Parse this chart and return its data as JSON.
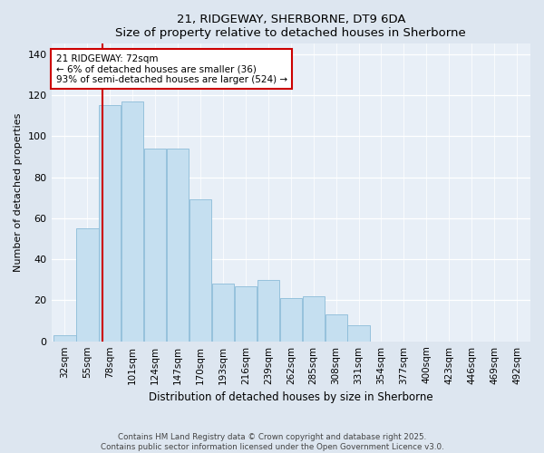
{
  "title": "21, RIDGEWAY, SHERBORNE, DT9 6DA",
  "subtitle": "Size of property relative to detached houses in Sherborne",
  "xlabel": "Distribution of detached houses by size in Sherborne",
  "ylabel": "Number of detached properties",
  "categories": [
    "32sqm",
    "55sqm",
    "78sqm",
    "101sqm",
    "124sqm",
    "147sqm",
    "170sqm",
    "193sqm",
    "216sqm",
    "239sqm",
    "262sqm",
    "285sqm",
    "308sqm",
    "331sqm",
    "354sqm",
    "377sqm",
    "400sqm",
    "423sqm",
    "446sqm",
    "469sqm",
    "492sqm"
  ],
  "values": [
    3,
    55,
    115,
    117,
    94,
    94,
    69,
    28,
    27,
    30,
    21,
    22,
    13,
    8,
    0,
    0,
    0,
    0,
    0,
    0,
    0
  ],
  "bar_color": "#c5dff0",
  "bar_edge_color": "#8bbbd8",
  "vline_x_data": 1.65,
  "vline_color": "#cc0000",
  "annotation_text": "21 RIDGEWAY: 72sqm\n← 6% of detached houses are smaller (36)\n93% of semi-detached houses are larger (524) →",
  "annotation_box_color": "#ffffff",
  "annotation_border_color": "#cc0000",
  "ylim": [
    0,
    145
  ],
  "yticks": [
    0,
    20,
    40,
    60,
    80,
    100,
    120,
    140
  ],
  "background_color": "#e8eff7",
  "grid_color": "#ffffff",
  "footer_line1": "Contains HM Land Registry data © Crown copyright and database right 2025.",
  "footer_line2": "Contains public sector information licensed under the Open Government Licence v3.0."
}
